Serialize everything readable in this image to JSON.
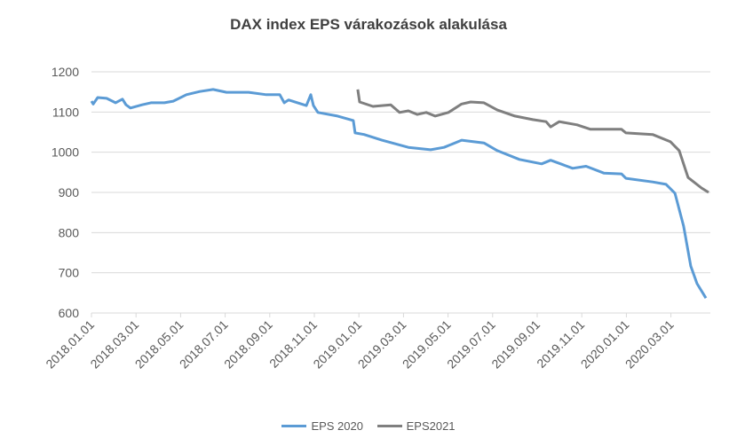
{
  "chart_data": {
    "type": "line",
    "title": "DAX index EPS várakozások  alakulása",
    "xlabel": "",
    "ylabel": "",
    "ylim": [
      600,
      1200
    ],
    "yticks": [
      600,
      700,
      800,
      900,
      1000,
      1100,
      1200
    ],
    "x_unit": "months since 2018.01.01",
    "xlim": [
      0,
      27.8
    ],
    "xticks": [
      {
        "m": 0,
        "label": "2018.01.01"
      },
      {
        "m": 2,
        "label": "2018.03.01"
      },
      {
        "m": 4,
        "label": "2018.05.01"
      },
      {
        "m": 6,
        "label": "2018.07.01"
      },
      {
        "m": 8,
        "label": "2018.09.01"
      },
      {
        "m": 10,
        "label": "2018.11.01"
      },
      {
        "m": 12,
        "label": "2019.01.01"
      },
      {
        "m": 14,
        "label": "2019.03.01"
      },
      {
        "m": 16,
        "label": "2019.05.01"
      },
      {
        "m": 18,
        "label": "2019.07.01"
      },
      {
        "m": 20,
        "label": "2019.09.01"
      },
      {
        "m": 22,
        "label": "2019.11.01"
      },
      {
        "m": 24,
        "label": "2020.01.01"
      },
      {
        "m": 26,
        "label": "2020.03.01"
      }
    ],
    "grid": true,
    "legend_position": "bottom",
    "series": [
      {
        "name": "EPS 2020",
        "color": "#5b9bd5",
        "points": [
          [
            0,
            1127
          ],
          [
            0.08,
            1120
          ],
          [
            0.28,
            1136
          ],
          [
            0.68,
            1134
          ],
          [
            1.08,
            1123
          ],
          [
            1.39,
            1132
          ],
          [
            1.55,
            1118
          ],
          [
            1.75,
            1110
          ],
          [
            2.27,
            1118
          ],
          [
            2.67,
            1123
          ],
          [
            3.27,
            1123
          ],
          [
            3.67,
            1127
          ],
          [
            4.26,
            1143
          ],
          [
            4.86,
            1151
          ],
          [
            5.46,
            1156
          ],
          [
            6.06,
            1149
          ],
          [
            7.05,
            1149
          ],
          [
            7.85,
            1143
          ],
          [
            8.45,
            1143
          ],
          [
            8.65,
            1123
          ],
          [
            8.84,
            1130
          ],
          [
            9.64,
            1116
          ],
          [
            9.84,
            1143
          ],
          [
            9.96,
            1116
          ],
          [
            10.16,
            1099
          ],
          [
            11.04,
            1090
          ],
          [
            11.75,
            1079
          ],
          [
            11.83,
            1048
          ],
          [
            12.23,
            1044
          ],
          [
            13.03,
            1030
          ],
          [
            14.22,
            1012
          ],
          [
            15.22,
            1006
          ],
          [
            15.82,
            1012
          ],
          [
            16.61,
            1030
          ],
          [
            17.61,
            1023
          ],
          [
            18.21,
            1004
          ],
          [
            19.2,
            982
          ],
          [
            20.2,
            971
          ],
          [
            20.6,
            980
          ],
          [
            21.59,
            960
          ],
          [
            22.19,
            965
          ],
          [
            22.99,
            948
          ],
          [
            23.78,
            946
          ],
          [
            23.98,
            935
          ],
          [
            25.18,
            926
          ],
          [
            25.78,
            920
          ],
          [
            26.18,
            898
          ],
          [
            26.57,
            816
          ],
          [
            26.89,
            717
          ],
          [
            27.17,
            673
          ],
          [
            27.57,
            637
          ]
        ]
      },
      {
        "name": "EPS2021",
        "color": "#7f7f7f",
        "points": [
          [
            11.95,
            1156
          ],
          [
            12.03,
            1125
          ],
          [
            12.63,
            1114
          ],
          [
            13.43,
            1118
          ],
          [
            13.82,
            1099
          ],
          [
            14.22,
            1103
          ],
          [
            14.62,
            1094
          ],
          [
            15.02,
            1099
          ],
          [
            15.42,
            1090
          ],
          [
            16.02,
            1099
          ],
          [
            16.61,
            1120
          ],
          [
            17.01,
            1125
          ],
          [
            17.61,
            1123
          ],
          [
            18.21,
            1105
          ],
          [
            19.0,
            1090
          ],
          [
            19.8,
            1081
          ],
          [
            20.4,
            1076
          ],
          [
            20.6,
            1063
          ],
          [
            20.99,
            1076
          ],
          [
            21.79,
            1068
          ],
          [
            22.39,
            1057
          ],
          [
            23.78,
            1057
          ],
          [
            23.98,
            1048
          ],
          [
            25.18,
            1044
          ],
          [
            25.98,
            1026
          ],
          [
            26.37,
            1004
          ],
          [
            26.77,
            937
          ],
          [
            27.37,
            911
          ],
          [
            27.69,
            900
          ]
        ]
      }
    ]
  }
}
